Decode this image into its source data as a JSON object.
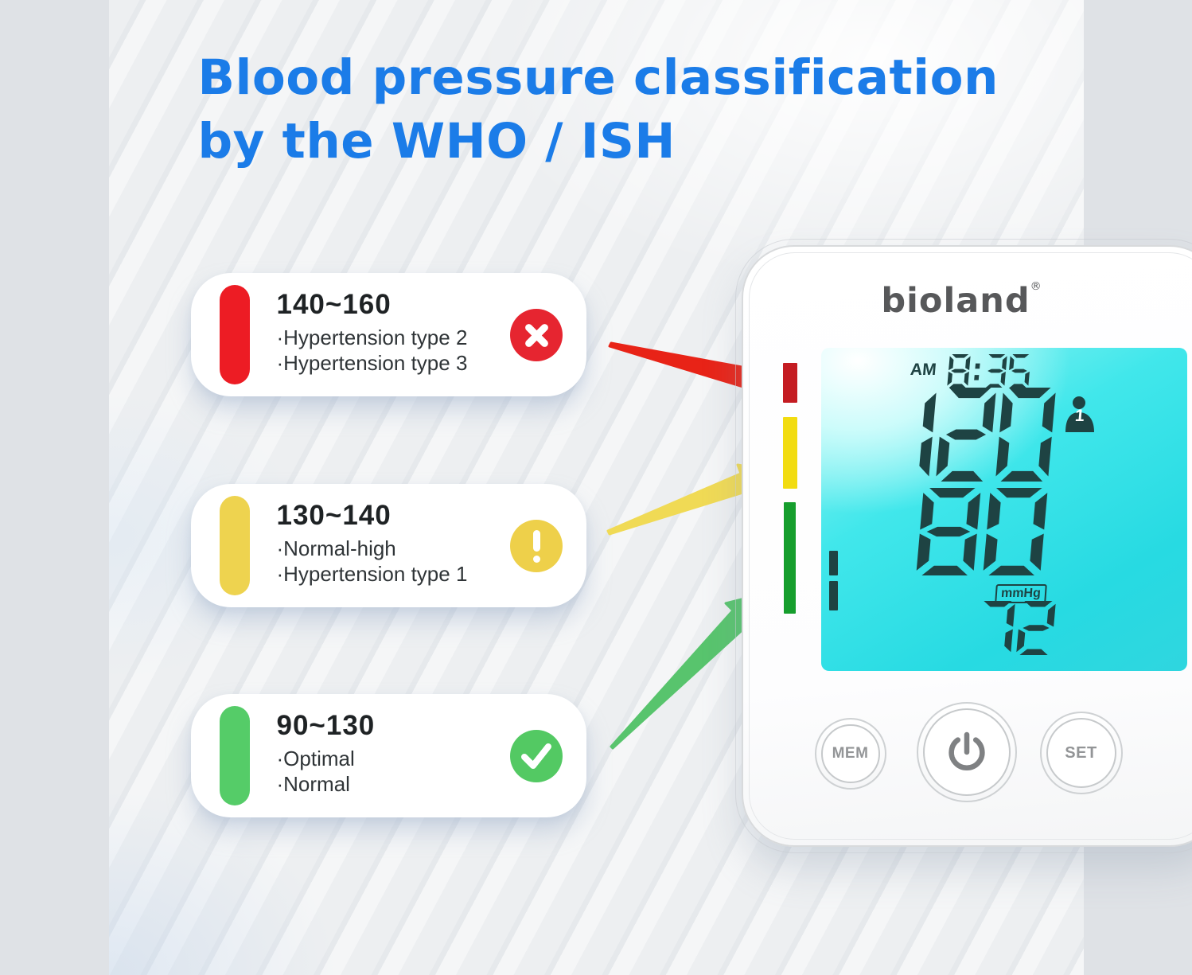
{
  "title": {
    "line1": "Blood pressure classification",
    "line2": "by the WHO / ISH"
  },
  "cards": [
    {
      "range": "140~160",
      "line1": "·Hypertension type 2",
      "line2": "·Hypertension type 3",
      "level_color": "#ed1c24",
      "status_icon": "x"
    },
    {
      "range": "130~140",
      "line1": "·Normal-high",
      "line2": "·Hypertension type 1",
      "level_color": "#eed34f",
      "status_icon": "exclamation"
    },
    {
      "range": "90~130",
      "line1": "·Optimal",
      "line2": "·Normal",
      "level_color": "#55cc68",
      "status_icon": "check"
    }
  ],
  "device": {
    "brand": "bioland",
    "registered_mark": "®",
    "display": {
      "period": "AM",
      "time": "8:35",
      "systolic": "120",
      "diastolic": "80",
      "pulse": "72",
      "unit": "mmHg",
      "user_badge": "1"
    },
    "buttons": {
      "memory": "MEM",
      "set": "SET"
    }
  },
  "colors": {
    "title_blue": "#1b7ce8",
    "card_red": "#e62530",
    "card_yellow": "#eed04a",
    "card_green": "#53c963",
    "device_bar_red": "#c41c22",
    "device_bar_yellow": "#f2dc10",
    "device_bar_green": "#169e2d",
    "lcd_cyan": "#2fdde4",
    "lcd_segment": "#1e4343"
  }
}
